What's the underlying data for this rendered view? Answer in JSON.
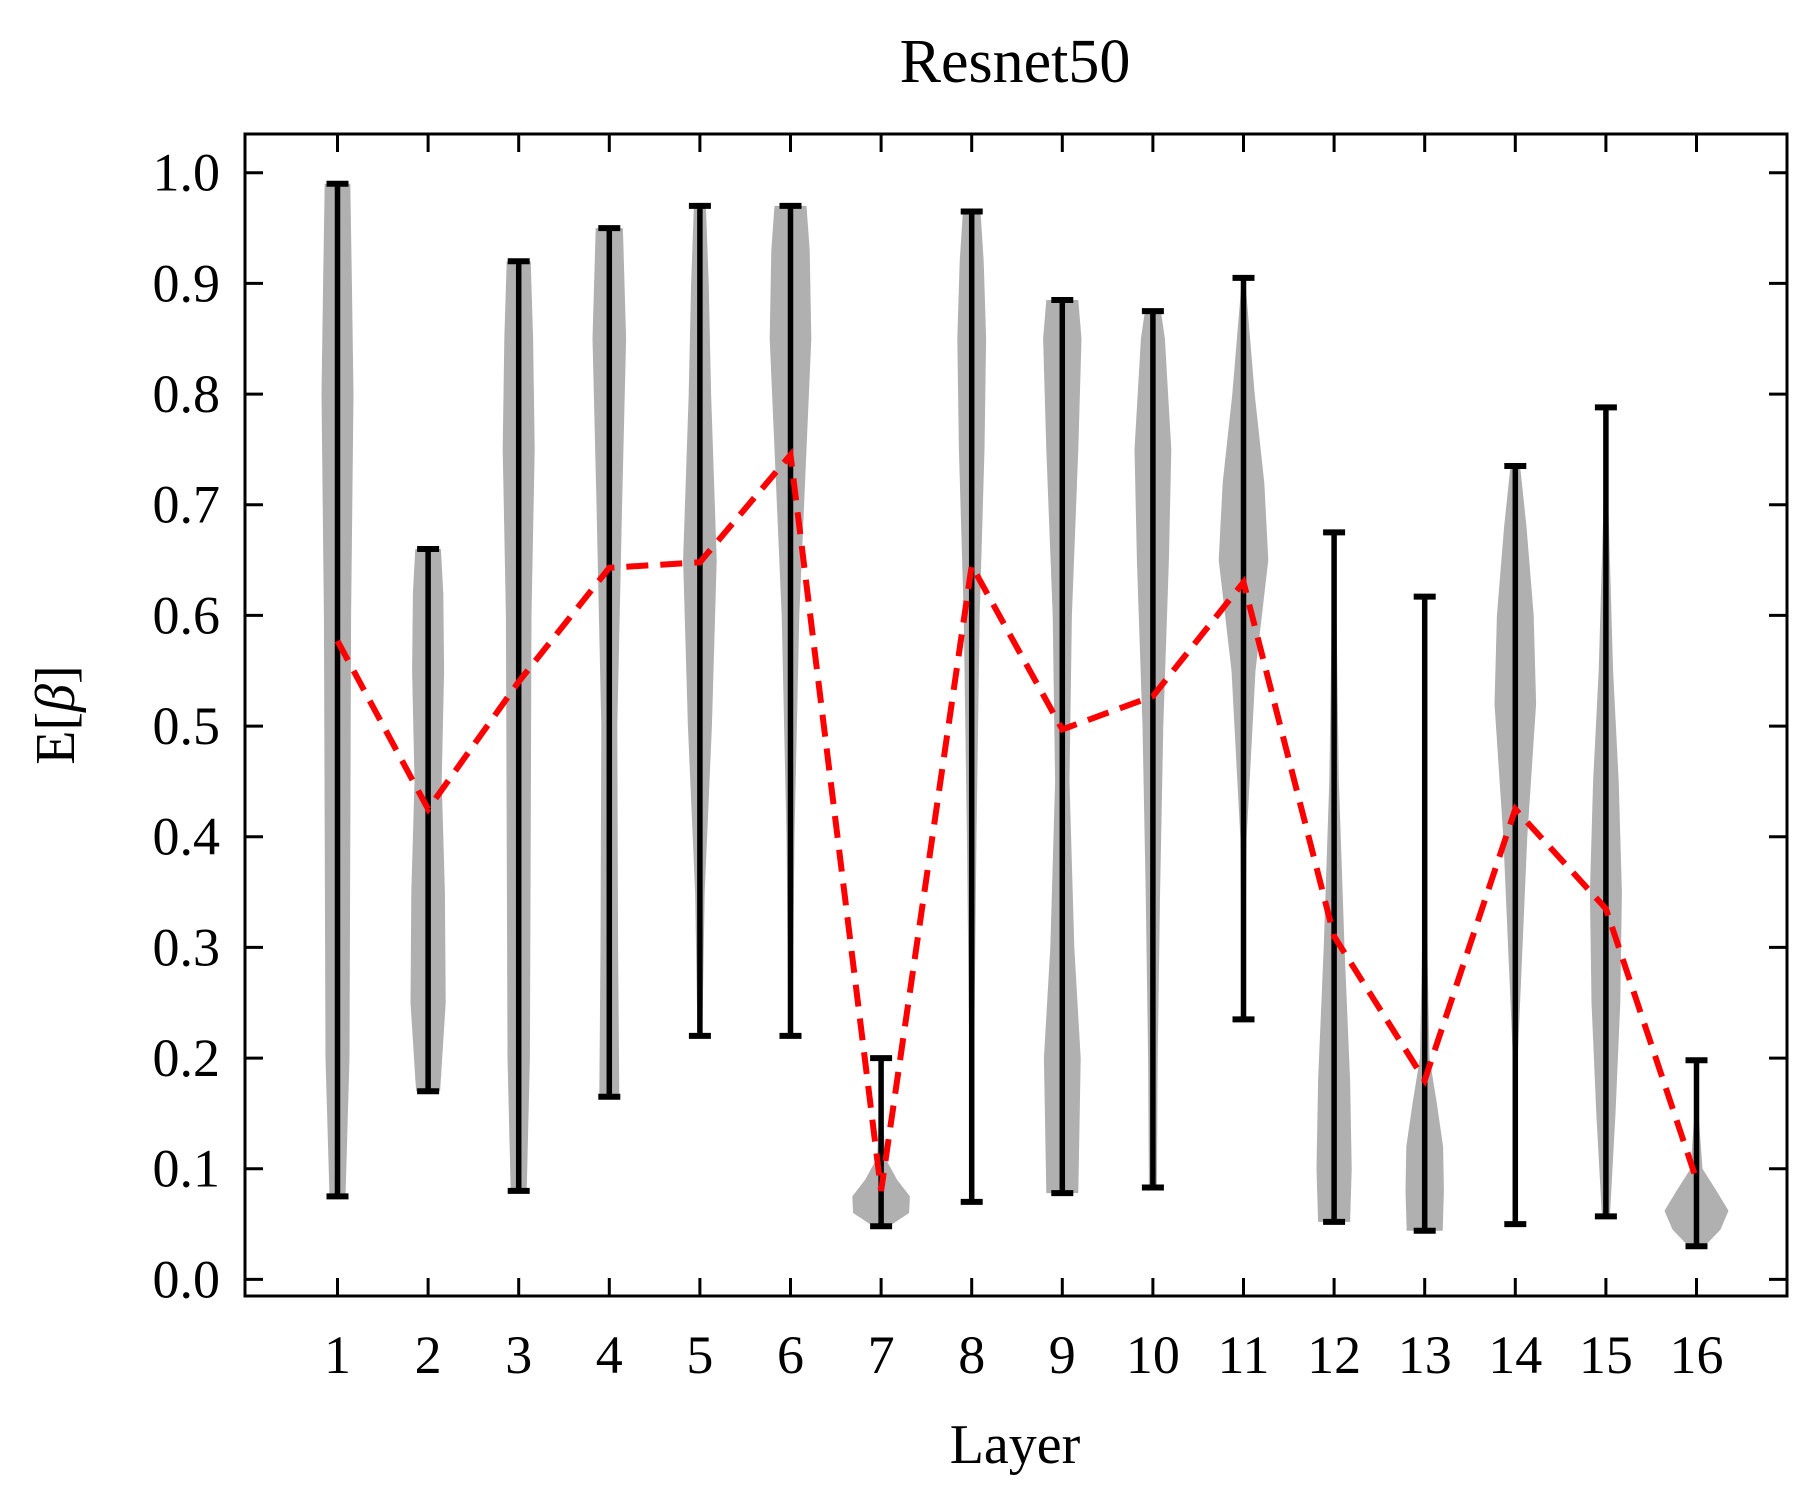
{
  "chart_data": {
    "type": "violin",
    "title": "Resnet50",
    "xlabel": "Layer",
    "ylabel": "E[β]",
    "ylabel_base": "E[",
    "ylabel_symbol": "β",
    "ylabel_close": "]",
    "ylim": [
      -0.015,
      1.035
    ],
    "yticks": [
      "0.0",
      "0.1",
      "0.2",
      "0.3",
      "0.4",
      "0.5",
      "0.6",
      "0.7",
      "0.8",
      "0.9",
      "1.0"
    ],
    "categories": [
      "1",
      "2",
      "3",
      "4",
      "5",
      "6",
      "7",
      "8",
      "9",
      "10",
      "11",
      "12",
      "13",
      "14",
      "15",
      "16"
    ],
    "violins": [
      {
        "min": 0.075,
        "max": 0.99,
        "density": [
          [
            0.075,
            0.2
          ],
          [
            0.2,
            0.3
          ],
          [
            0.4,
            0.32
          ],
          [
            0.6,
            0.34
          ],
          [
            0.8,
            0.4
          ],
          [
            0.9,
            0.36
          ],
          [
            0.99,
            0.32
          ]
        ]
      },
      {
        "min": 0.17,
        "max": 0.66,
        "density": [
          [
            0.17,
            0.3
          ],
          [
            0.25,
            0.44
          ],
          [
            0.35,
            0.42
          ],
          [
            0.45,
            0.34
          ],
          [
            0.55,
            0.4
          ],
          [
            0.62,
            0.38
          ],
          [
            0.66,
            0.32
          ]
        ]
      },
      {
        "min": 0.08,
        "max": 0.92,
        "density": [
          [
            0.08,
            0.2
          ],
          [
            0.2,
            0.28
          ],
          [
            0.4,
            0.3
          ],
          [
            0.6,
            0.32
          ],
          [
            0.75,
            0.4
          ],
          [
            0.85,
            0.36
          ],
          [
            0.92,
            0.3
          ]
        ]
      },
      {
        "min": 0.165,
        "max": 0.95,
        "density": [
          [
            0.165,
            0.25
          ],
          [
            0.3,
            0.22
          ],
          [
            0.5,
            0.2
          ],
          [
            0.7,
            0.32
          ],
          [
            0.85,
            0.42
          ],
          [
            0.95,
            0.34
          ]
        ]
      },
      {
        "min": 0.22,
        "max": 0.97,
        "density": [
          [
            0.22,
            0.06
          ],
          [
            0.35,
            0.12
          ],
          [
            0.5,
            0.3
          ],
          [
            0.65,
            0.42
          ],
          [
            0.8,
            0.28
          ],
          [
            0.9,
            0.22
          ],
          [
            0.97,
            0.15
          ]
        ]
      },
      {
        "min": 0.22,
        "max": 0.97,
        "density": [
          [
            0.22,
            0.05
          ],
          [
            0.4,
            0.1
          ],
          [
            0.6,
            0.22
          ],
          [
            0.75,
            0.4
          ],
          [
            0.85,
            0.52
          ],
          [
            0.93,
            0.48
          ],
          [
            0.97,
            0.4
          ]
        ]
      },
      {
        "min": 0.048,
        "max": 0.2,
        "density": [
          [
            0.048,
            0.2
          ],
          [
            0.06,
            0.7
          ],
          [
            0.075,
            0.72
          ],
          [
            0.09,
            0.4
          ],
          [
            0.11,
            0.1
          ],
          [
            0.15,
            0.05
          ],
          [
            0.2,
            0.03
          ]
        ]
      },
      {
        "min": 0.07,
        "max": 0.965,
        "density": [
          [
            0.07,
            0.03
          ],
          [
            0.2,
            0.06
          ],
          [
            0.4,
            0.12
          ],
          [
            0.6,
            0.2
          ],
          [
            0.75,
            0.32
          ],
          [
            0.85,
            0.36
          ],
          [
            0.92,
            0.3
          ],
          [
            0.965,
            0.22
          ]
        ]
      },
      {
        "min": 0.078,
        "max": 0.885,
        "density": [
          [
            0.078,
            0.4
          ],
          [
            0.2,
            0.46
          ],
          [
            0.3,
            0.3
          ],
          [
            0.45,
            0.18
          ],
          [
            0.6,
            0.24
          ],
          [
            0.75,
            0.4
          ],
          [
            0.85,
            0.48
          ],
          [
            0.885,
            0.4
          ]
        ]
      },
      {
        "min": 0.083,
        "max": 0.875,
        "density": [
          [
            0.083,
            0.1
          ],
          [
            0.2,
            0.12
          ],
          [
            0.35,
            0.18
          ],
          [
            0.5,
            0.26
          ],
          [
            0.65,
            0.4
          ],
          [
            0.75,
            0.46
          ],
          [
            0.85,
            0.3
          ],
          [
            0.875,
            0.2
          ]
        ]
      },
      {
        "min": 0.235,
        "max": 0.905,
        "density": [
          [
            0.235,
            0.03
          ],
          [
            0.4,
            0.08
          ],
          [
            0.55,
            0.3
          ],
          [
            0.65,
            0.62
          ],
          [
            0.72,
            0.52
          ],
          [
            0.8,
            0.28
          ],
          [
            0.9,
            0.05
          ]
        ]
      },
      {
        "min": 0.052,
        "max": 0.675,
        "density": [
          [
            0.052,
            0.4
          ],
          [
            0.1,
            0.44
          ],
          [
            0.18,
            0.4
          ],
          [
            0.3,
            0.26
          ],
          [
            0.45,
            0.12
          ],
          [
            0.6,
            0.06
          ],
          [
            0.675,
            0.05
          ]
        ]
      },
      {
        "min": 0.044,
        "max": 0.617,
        "density": [
          [
            0.044,
            0.45
          ],
          [
            0.08,
            0.48
          ],
          [
            0.12,
            0.46
          ],
          [
            0.16,
            0.3
          ],
          [
            0.2,
            0.12
          ],
          [
            0.35,
            0.04
          ],
          [
            0.617,
            0.02
          ]
        ]
      },
      {
        "min": 0.05,
        "max": 0.735,
        "density": [
          [
            0.05,
            0.02
          ],
          [
            0.2,
            0.06
          ],
          [
            0.4,
            0.3
          ],
          [
            0.52,
            0.52
          ],
          [
            0.6,
            0.46
          ],
          [
            0.68,
            0.28
          ],
          [
            0.735,
            0.12
          ]
        ]
      },
      {
        "min": 0.057,
        "max": 0.788,
        "density": [
          [
            0.057,
            0.1
          ],
          [
            0.15,
            0.24
          ],
          [
            0.25,
            0.36
          ],
          [
            0.35,
            0.4
          ],
          [
            0.45,
            0.32
          ],
          [
            0.55,
            0.18
          ],
          [
            0.7,
            0.06
          ],
          [
            0.788,
            0.03
          ]
        ]
      },
      {
        "min": 0.03,
        "max": 0.198,
        "density": [
          [
            0.03,
            0.2
          ],
          [
            0.045,
            0.6
          ],
          [
            0.062,
            0.8
          ],
          [
            0.08,
            0.5
          ],
          [
            0.1,
            0.15
          ],
          [
            0.15,
            0.05
          ],
          [
            0.198,
            0.03
          ]
        ]
      }
    ],
    "mean_series": [
      0.577,
      0.425,
      0.54,
      0.643,
      0.648,
      0.745,
      0.08,
      0.645,
      0.497,
      0.527,
      0.63,
      0.31,
      0.18,
      0.425,
      0.335,
      0.09
    ],
    "colors": {
      "violin_fill": "#b0b0b0",
      "range_line": "#000000",
      "mean_line": "#ff0000"
    },
    "grid": false
  }
}
